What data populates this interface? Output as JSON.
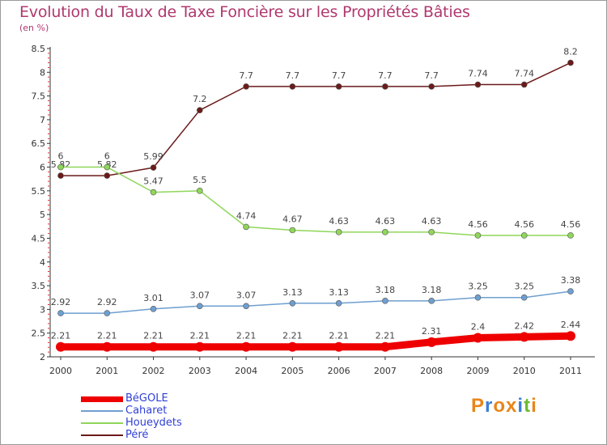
{
  "title": "Evolution du Taux de Taxe Foncière sur les Propriétés Bâties",
  "subtitle": "(en %)",
  "logo_text": "Proxiti",
  "logo_colors": [
    "#e8861a",
    "#3a7fd6",
    "#e8861a",
    "#e8861a",
    "#3a7fd6",
    "#6dbb2e",
    "#e8861a"
  ],
  "chart_data": {
    "type": "line",
    "x": [
      "2000",
      "2001",
      "2002",
      "2003",
      "2004",
      "2005",
      "2006",
      "2007",
      "2008",
      "2009",
      "2010",
      "2011"
    ],
    "ylim": [
      2,
      8.5
    ],
    "yticks": [
      "2",
      "2.5",
      "3",
      "3.5",
      "4",
      "4.5",
      "5",
      "5.5",
      "6",
      "6.5",
      "7",
      "7.5",
      "8",
      "8.5"
    ],
    "grid": false,
    "legend_position": "bottom-left",
    "series": [
      {
        "name": "Péré",
        "color": "#6b1a1a",
        "values": [
          5.82,
          5.82,
          5.99,
          7.2,
          7.7,
          7.7,
          7.7,
          7.7,
          7.7,
          7.74,
          7.74,
          8.2
        ],
        "labels": [
          "5.82",
          "5.82",
          "5.99",
          "7.2",
          "7.7",
          "7.7",
          "7.7",
          "7.7",
          "7.7",
          "7.74",
          "7.74",
          "8.2"
        ]
      },
      {
        "name": "Houeydets",
        "color": "#8fd65a",
        "values": [
          6,
          6,
          5.47,
          5.5,
          4.74,
          4.67,
          4.63,
          4.63,
          4.63,
          4.56,
          4.56,
          4.56
        ],
        "labels": [
          "6",
          "6",
          "5.47",
          "5.5",
          "4.74",
          "4.67",
          "4.63",
          "4.63",
          "4.63",
          "4.56",
          "4.56",
          "4.56"
        ]
      },
      {
        "name": "Caharet",
        "color": "#6f9fd0",
        "values": [
          2.92,
          2.92,
          3.01,
          3.07,
          3.07,
          3.13,
          3.13,
          3.18,
          3.18,
          3.25,
          3.25,
          3.38
        ],
        "labels": [
          "2.92",
          "2.92",
          "3.01",
          "3.07",
          "3.07",
          "3.13",
          "3.13",
          "3.18",
          "3.18",
          "3.25",
          "3.25",
          "3.38"
        ]
      },
      {
        "name": "BéGOLE",
        "color": "#ee0000",
        "values": [
          2.21,
          2.21,
          2.21,
          2.21,
          2.21,
          2.21,
          2.21,
          2.21,
          2.31,
          2.4,
          2.42,
          2.44
        ],
        "labels": [
          "2.21",
          "2.21",
          "2.21",
          "2.21",
          "2.21",
          "2.21",
          "2.21",
          "2.21",
          "2.31",
          "2.4",
          "2.42",
          "2.44"
        ]
      }
    ],
    "legend": [
      {
        "name": "BéGOLE",
        "color": "#ee0000"
      },
      {
        "name": "Caharet",
        "color": "#6f9fd0"
      },
      {
        "name": "Houeydets",
        "color": "#8fd65a"
      },
      {
        "name": "Péré",
        "color": "#6b1a1a"
      }
    ]
  }
}
